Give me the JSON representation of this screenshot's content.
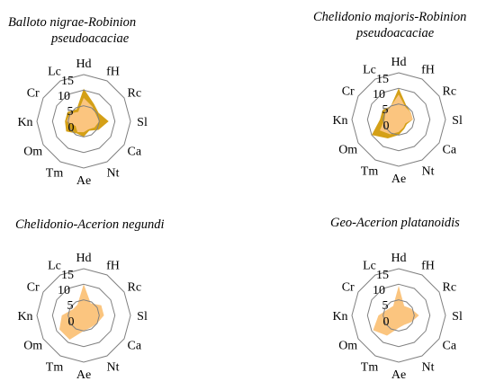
{
  "colors": {
    "outer_series": "#d4a017",
    "inner_series": "#fbc57f",
    "grid": "#808080",
    "text": "#000000"
  },
  "chart_data": [
    {
      "type": "radar",
      "title_lines": [
        "Balloto nigrae-Robinion",
        "pseudoacaciae"
      ],
      "axes": [
        "Hd",
        "fH",
        "Rc",
        "Sl",
        "Ca",
        "Nt",
        "Ae",
        "Tm",
        "Om",
        "Kn",
        "Cr",
        "Lc"
      ],
      "rlim": [
        0,
        15
      ],
      "radial_ticks": [
        "15",
        "10",
        "5",
        "0"
      ],
      "series": [
        {
          "values": [
            10.5,
            6.5,
            5.5,
            8,
            5.5,
            3.5,
            5,
            4.5,
            6.5,
            6,
            6,
            4.5
          ]
        },
        {
          "values": [
            7.5,
            5.5,
            4.5,
            5,
            4,
            3,
            3.5,
            4,
            3,
            5.5,
            5,
            3.5
          ]
        }
      ]
    },
    {
      "type": "radar",
      "title_lines": [
        "Chelidonio majoris-Robinion",
        "pseudoacaciae"
      ],
      "axes": [
        "Hd",
        "fH",
        "Rc",
        "Sl",
        "Ca",
        "Nt",
        "Ae",
        "Tm",
        "Om",
        "Kn",
        "Cr",
        "Lc"
      ],
      "rlim": [
        0,
        15
      ],
      "radial_ticks": [
        "15",
        "10",
        "5",
        "0"
      ],
      "series": [
        {
          "values": [
            10,
            5,
            4.5,
            4.5,
            3,
            3.5,
            5,
            7,
            10,
            6,
            6,
            5
          ]
        },
        {
          "values": [
            8,
            4.5,
            4.5,
            4.5,
            2.5,
            3,
            4,
            5.5,
            7,
            4.5,
            5,
            5
          ]
        }
      ]
    },
    {
      "type": "radar",
      "title_lines": [
        "Chelidonio-Acerion negundi"
      ],
      "axes": [
        "Hd",
        "fH",
        "Rc",
        "Sl",
        "Ca",
        "Nt",
        "Ae",
        "Tm",
        "Om",
        "Kn",
        "Cr",
        "Lc"
      ],
      "rlim": [
        0,
        15
      ],
      "radial_ticks": [
        "15",
        "10",
        "5",
        "0"
      ],
      "series": [
        {
          "values": [
            10,
            4.5,
            6.5,
            6.5,
            5,
            4.5,
            5,
            9,
            9,
            7,
            4,
            4
          ]
        }
      ]
    },
    {
      "type": "radar",
      "title_lines": [
        "Geo-Acerion platanoidis"
      ],
      "axes": [
        "Hd",
        "fH",
        "Rc",
        "Sl",
        "Ca",
        "Nt",
        "Ae",
        "Tm",
        "Om",
        "Kn",
        "Cr",
        "Lc"
      ],
      "rlim": [
        0,
        15
      ],
      "radial_ticks": [
        "15",
        "10",
        "5",
        "0"
      ],
      "series": [
        {
          "values": [
            9.5,
            3.5,
            4.5,
            6.5,
            4.5,
            3.5,
            4,
            7.5,
            9.5,
            6.5,
            4,
            3.5
          ]
        }
      ]
    }
  ]
}
